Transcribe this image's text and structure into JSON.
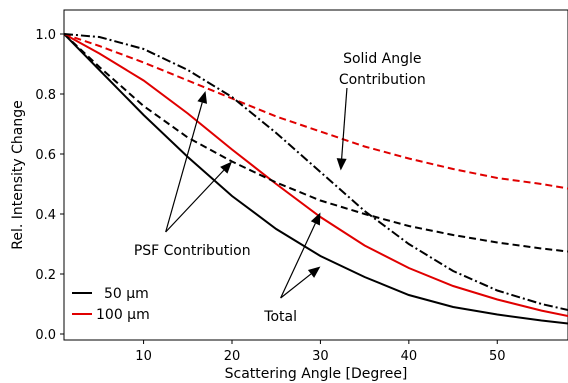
{
  "chart_data": {
    "type": "line",
    "xlabel": "Scattering Angle [Degree]",
    "ylabel": "Rel. Intensity Change",
    "xlim": [
      1,
      58
    ],
    "ylim": [
      -0.02,
      1.08
    ],
    "xticks": [
      10,
      20,
      30,
      40,
      50
    ],
    "yticks": [
      0.0,
      0.2,
      0.4,
      0.6,
      0.8,
      1.0
    ],
    "grid": false,
    "legend_position": "bottom-left",
    "series": [
      {
        "name": "50 µm",
        "role": "total",
        "color": "#000000",
        "dash": "solid",
        "points": [
          [
            1,
            1.0
          ],
          [
            5,
            0.88
          ],
          [
            10,
            0.73
          ],
          [
            15,
            0.59
          ],
          [
            20,
            0.46
          ],
          [
            25,
            0.35
          ],
          [
            30,
            0.26
          ],
          [
            35,
            0.19
          ],
          [
            40,
            0.13
          ],
          [
            45,
            0.09
          ],
          [
            50,
            0.065
          ],
          [
            55,
            0.045
          ],
          [
            58,
            0.035
          ]
        ]
      },
      {
        "name": "100 µm",
        "role": "total",
        "color": "#e00000",
        "dash": "solid",
        "points": [
          [
            1,
            1.0
          ],
          [
            5,
            0.935
          ],
          [
            10,
            0.845
          ],
          [
            15,
            0.735
          ],
          [
            20,
            0.615
          ],
          [
            25,
            0.5
          ],
          [
            30,
            0.39
          ],
          [
            35,
            0.295
          ],
          [
            40,
            0.22
          ],
          [
            45,
            0.16
          ],
          [
            50,
            0.115
          ],
          [
            55,
            0.078
          ],
          [
            58,
            0.06
          ]
        ]
      },
      {
        "role": "psf-contribution-50",
        "color": "#000000",
        "dash": "dashed",
        "points": [
          [
            1,
            1.0
          ],
          [
            5,
            0.89
          ],
          [
            10,
            0.76
          ],
          [
            15,
            0.655
          ],
          [
            20,
            0.575
          ],
          [
            25,
            0.505
          ],
          [
            30,
            0.445
          ],
          [
            35,
            0.4
          ],
          [
            40,
            0.36
          ],
          [
            45,
            0.33
          ],
          [
            50,
            0.305
          ],
          [
            55,
            0.285
          ],
          [
            58,
            0.275
          ]
        ]
      },
      {
        "role": "psf-contribution-100",
        "color": "#e00000",
        "dash": "dashed",
        "points": [
          [
            1,
            1.0
          ],
          [
            5,
            0.96
          ],
          [
            10,
            0.905
          ],
          [
            15,
            0.845
          ],
          [
            20,
            0.785
          ],
          [
            25,
            0.725
          ],
          [
            30,
            0.675
          ],
          [
            35,
            0.625
          ],
          [
            40,
            0.585
          ],
          [
            45,
            0.55
          ],
          [
            50,
            0.52
          ],
          [
            55,
            0.5
          ],
          [
            58,
            0.485
          ]
        ]
      },
      {
        "role": "solid-angle-contribution",
        "color": "#000000",
        "dash": "dashdot",
        "points": [
          [
            1,
            1.0
          ],
          [
            5,
            0.99
          ],
          [
            10,
            0.95
          ],
          [
            15,
            0.88
          ],
          [
            20,
            0.79
          ],
          [
            25,
            0.67
          ],
          [
            30,
            0.54
          ],
          [
            35,
            0.41
          ],
          [
            40,
            0.3
          ],
          [
            45,
            0.21
          ],
          [
            50,
            0.145
          ],
          [
            55,
            0.1
          ],
          [
            58,
            0.08
          ]
        ]
      }
    ],
    "annotations": [
      {
        "text": "Solid Angle",
        "x": 37,
        "y": 0.92
      },
      {
        "text": "Contribution",
        "x": 37,
        "y": 0.85
      },
      {
        "text": "PSF Contribution",
        "x": 15.5,
        "y": 0.28
      },
      {
        "text": "Total",
        "x": 25.5,
        "y": 0.06
      }
    ],
    "arrows": [
      {
        "from": [
          33,
          0.82
        ],
        "to": [
          32.3,
          0.545
        ]
      },
      {
        "from": [
          12.5,
          0.34
        ],
        "to": [
          17,
          0.81
        ]
      },
      {
        "from": [
          12.5,
          0.34
        ],
        "to": [
          20,
          0.575
        ]
      },
      {
        "from": [
          25.5,
          0.12
        ],
        "to": [
          30,
          0.405
        ]
      },
      {
        "from": [
          25.5,
          0.12
        ],
        "to": [
          30,
          0.225
        ]
      }
    ],
    "legend": [
      {
        "label": "50 µm",
        "color": "#000000"
      },
      {
        "label": "100 µm",
        "color": "#e00000"
      }
    ]
  }
}
